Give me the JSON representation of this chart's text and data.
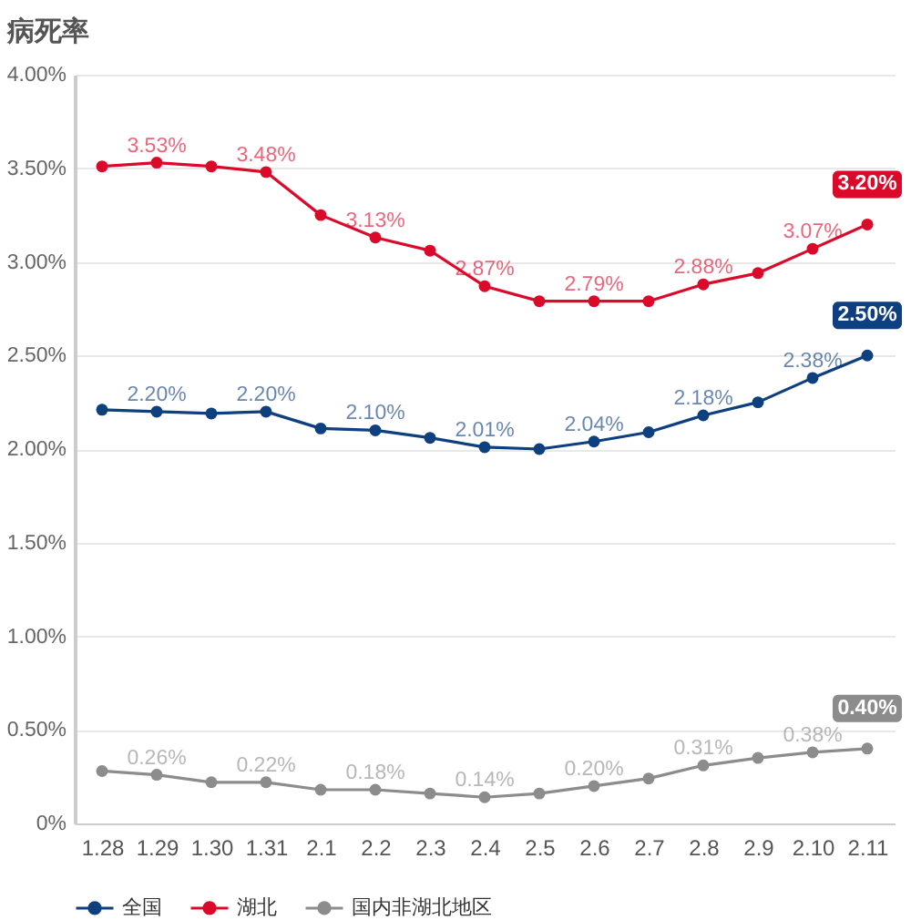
{
  "chart_data": {
    "type": "line",
    "title": "病死率",
    "categories": [
      "1.28",
      "1.29",
      "1.30",
      "1.31",
      "2.1",
      "2.2",
      "2.3",
      "2.4",
      "2.5",
      "2.6",
      "2.7",
      "2.8",
      "2.9",
      "2.10",
      "2.11"
    ],
    "series": [
      {
        "name": "全国",
        "color": "#0e3f7e",
        "values": [
          2.21,
          2.2,
          2.19,
          2.2,
          2.11,
          2.1,
          2.06,
          2.01,
          2.0,
          2.04,
          2.09,
          2.18,
          2.25,
          2.38,
          2.5
        ],
        "value_labels": [
          null,
          "2.20%",
          null,
          "2.20%",
          null,
          "2.10%",
          null,
          "2.01%",
          null,
          "2.04%",
          null,
          "2.18%",
          null,
          "2.38%",
          "2.50%"
        ]
      },
      {
        "name": "湖北",
        "color": "#dc0a2a",
        "values": [
          3.51,
          3.53,
          3.51,
          3.48,
          3.25,
          3.13,
          3.06,
          2.87,
          2.79,
          2.79,
          2.79,
          2.88,
          2.94,
          3.07,
          3.2
        ],
        "value_labels": [
          null,
          "3.53%",
          null,
          "3.48%",
          null,
          "3.13%",
          null,
          "2.87%",
          null,
          "2.79%",
          null,
          "2.88%",
          null,
          "3.07%",
          "3.20%"
        ]
      },
      {
        "name": "国内非湖北地区",
        "color": "#8c8c8c",
        "values": [
          0.28,
          0.26,
          0.22,
          0.22,
          0.18,
          0.18,
          0.16,
          0.14,
          0.16,
          0.2,
          0.24,
          0.31,
          0.35,
          0.38,
          0.4
        ],
        "value_labels": [
          null,
          "0.26%",
          null,
          "0.22%",
          null,
          "0.18%",
          null,
          "0.14%",
          null,
          "0.20%",
          null,
          "0.31%",
          null,
          "0.38%",
          "0.40%"
        ]
      }
    ],
    "ylim": [
      0,
      4
    ],
    "yticks": [
      {
        "value": 0,
        "label": "0%"
      },
      {
        "value": 0.5,
        "label": "0.50%"
      },
      {
        "value": 1,
        "label": "1.00%"
      },
      {
        "value": 1.5,
        "label": "1.50%"
      },
      {
        "value": 2,
        "label": "2.00%"
      },
      {
        "value": 2.5,
        "label": "2.50%"
      },
      {
        "value": 3,
        "label": "3.00%"
      },
      {
        "value": 3.5,
        "label": "3.50%"
      },
      {
        "value": 4,
        "label": "4.00%"
      }
    ],
    "grid": "y",
    "legend": "bottom",
    "marker": "circle"
  }
}
